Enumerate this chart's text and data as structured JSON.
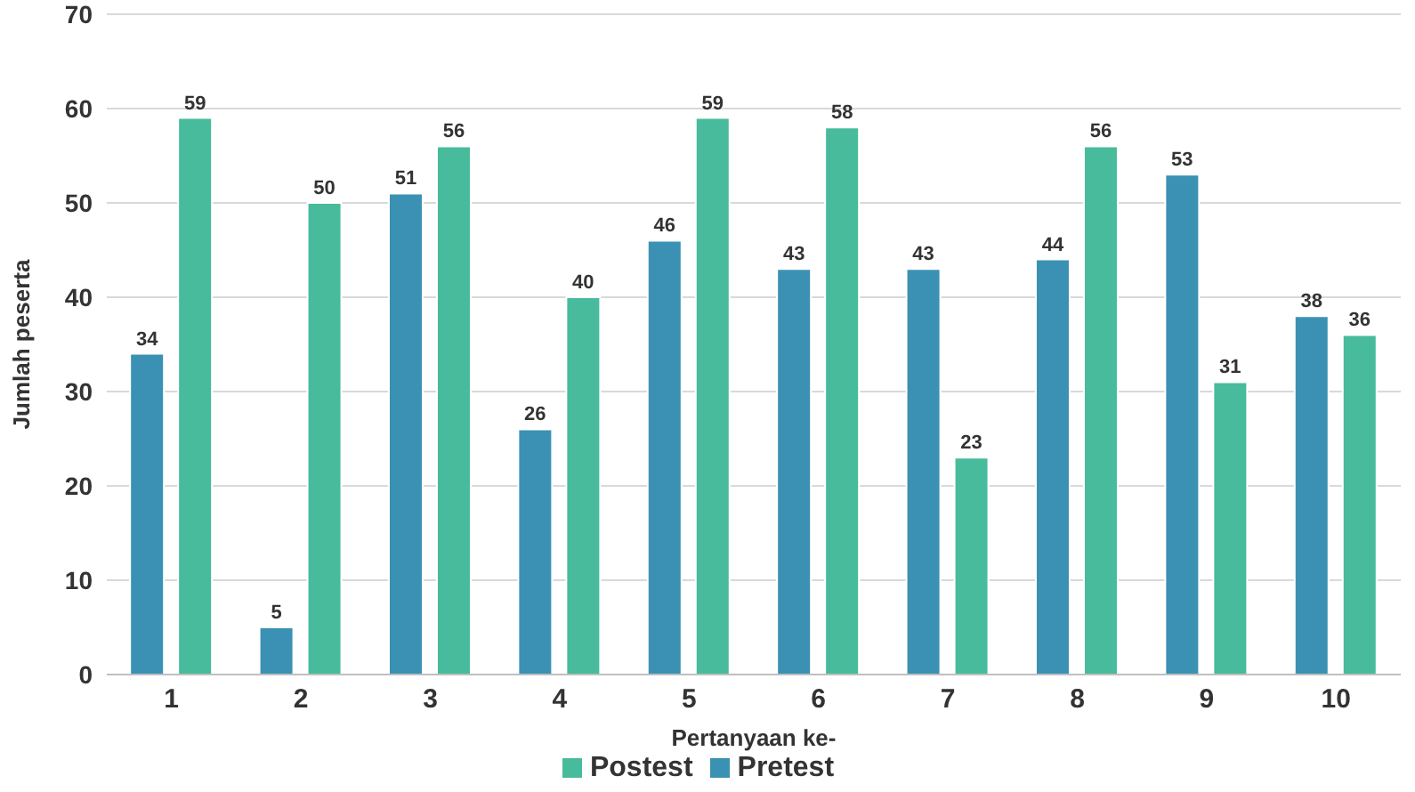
{
  "chart_data": {
    "type": "bar",
    "categories": [
      "1",
      "2",
      "3",
      "4",
      "5",
      "6",
      "7",
      "8",
      "9",
      "10"
    ],
    "series": [
      {
        "name": "Pretest",
        "color": "#3a91b3",
        "values": [
          34,
          5,
          51,
          26,
          46,
          43,
          43,
          44,
          53,
          38
        ]
      },
      {
        "name": "Postest",
        "color": "#47bb9b",
        "values": [
          59,
          50,
          56,
          40,
          59,
          58,
          23,
          56,
          31,
          36
        ]
      }
    ],
    "xlabel": "Pertanyaan ke-",
    "ylabel": "Jumlah peserta",
    "ylim": [
      0,
      70
    ],
    "yticks": [
      0,
      10,
      20,
      30,
      40,
      50,
      60,
      70
    ],
    "grid": "y",
    "legend": "bottom",
    "data_labels": true
  }
}
